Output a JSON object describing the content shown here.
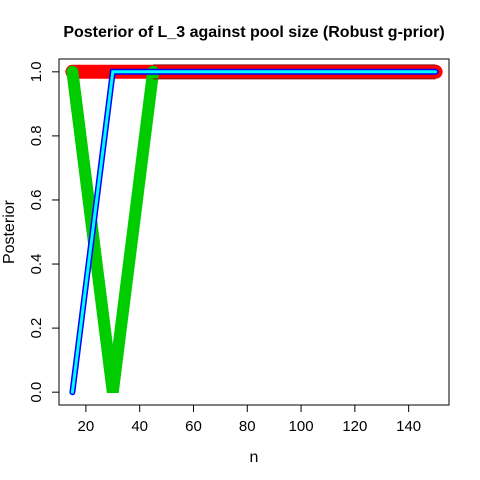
{
  "chart_data": {
    "type": "line",
    "title": "Posterior of L_3 against pool size (Robust g-prior)",
    "xlabel": "n",
    "ylabel": "Posterior",
    "xlim": [
      10,
      155
    ],
    "ylim": [
      -0.04,
      1.04
    ],
    "xticks": [
      "20",
      "40",
      "60",
      "80",
      "100",
      "120",
      "140"
    ],
    "yticks": [
      "0.0",
      "0.2",
      "0.4",
      "0.6",
      "0.8",
      "1.0"
    ],
    "grid": false,
    "legend": "none",
    "series": [
      {
        "color": "#ff0000",
        "x": [
          15,
          30,
          45,
          150
        ],
        "y": [
          1,
          1,
          1,
          1
        ]
      },
      {
        "color": "#00cc00",
        "x": [
          15,
          30,
          45
        ],
        "y": [
          1,
          0,
          1
        ]
      },
      {
        "color": "#0000ff",
        "x": [
          15,
          30,
          45,
          150
        ],
        "y": [
          0,
          1,
          1,
          1
        ]
      },
      {
        "color": "#00ffff",
        "x": [
          15,
          30,
          45,
          150
        ],
        "y": [
          0,
          1,
          1,
          1
        ]
      }
    ]
  }
}
